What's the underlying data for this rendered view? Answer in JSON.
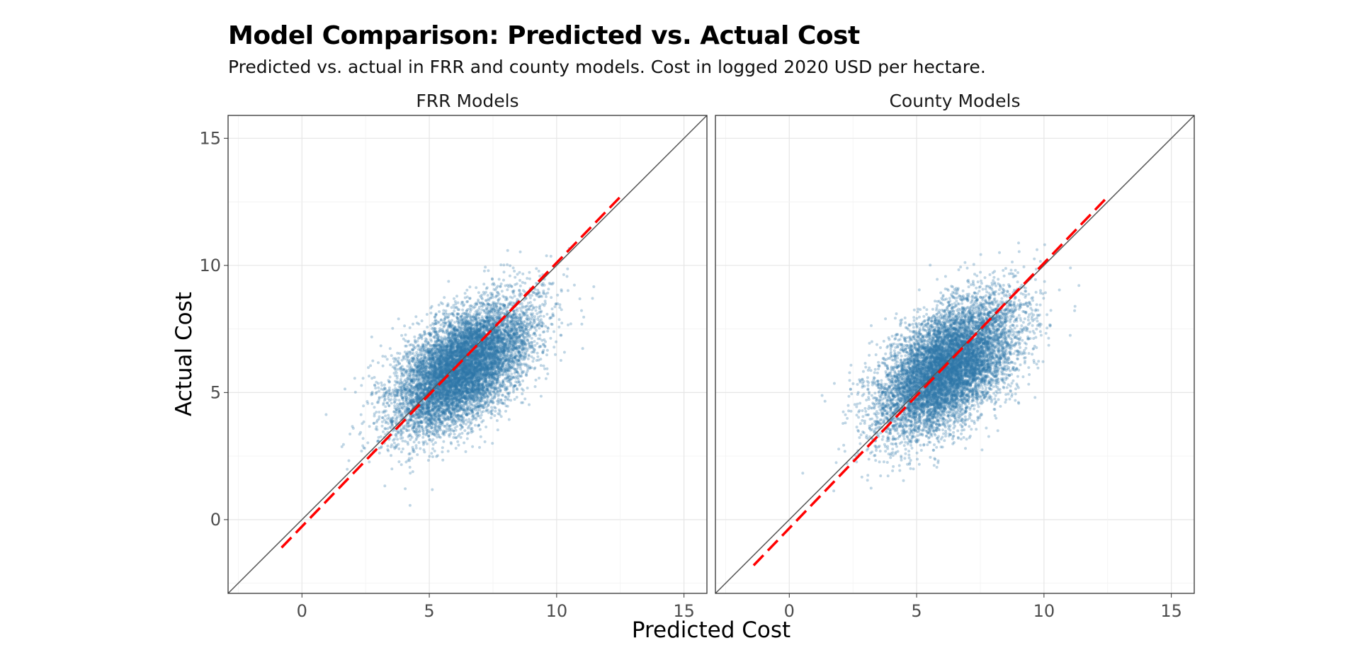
{
  "chart_data": {
    "type": "scatter",
    "title": "Model Comparison: Predicted vs. Actual Cost",
    "subtitle": "Predicted vs. actual in FRR and county models. Cost in logged 2020 USD per hectare.",
    "xlabel": "Predicted Cost",
    "ylabel": "Actual Cost",
    "xlim": [
      -2.9,
      15.9
    ],
    "ylim": [
      -2.9,
      15.9
    ],
    "x_ticks": [
      "0",
      "5",
      "10",
      "15"
    ],
    "y_ticks": [
      "0",
      "5",
      "10",
      "15"
    ],
    "grid": true,
    "legend": "none",
    "point_color": "#2e78aa",
    "identity_line_color": "#555555",
    "fit_line_color": "#ff0000",
    "facets": [
      {
        "name": "FRR Models",
        "points": {
          "n": 9000,
          "center": [
            6.3,
            6.0
          ],
          "major_slope": 0.92,
          "sd_major": 1.65,
          "sd_minor": 0.85,
          "x_range": [
            0.0,
            12.0
          ],
          "y_range": [
            -1.9,
            13.3
          ]
        },
        "fit_line": {
          "from": [
            -0.8,
            -1.1
          ],
          "to": [
            12.5,
            12.7
          ]
        }
      },
      {
        "name": "County Models",
        "points": {
          "n": 9000,
          "center": [
            6.2,
            6.0
          ],
          "major_slope": 0.95,
          "sd_major": 1.65,
          "sd_minor": 0.9,
          "x_range": [
            -0.5,
            11.5
          ],
          "y_range": [
            -2.0,
            14.5
          ]
        },
        "fit_line": {
          "from": [
            -1.4,
            -1.8
          ],
          "to": [
            12.5,
            12.7
          ]
        }
      }
    ]
  }
}
